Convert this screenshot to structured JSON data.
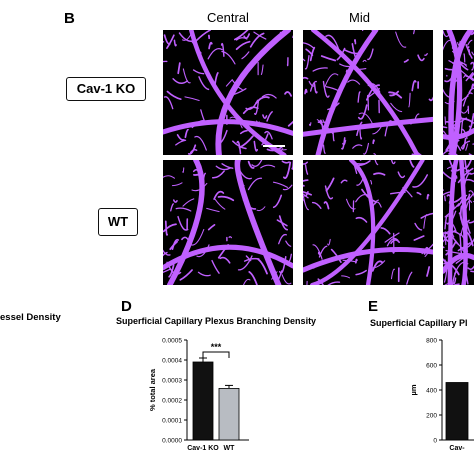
{
  "panel_b": {
    "letter": "B",
    "columns": [
      "Central",
      "Mid"
    ],
    "rows": [
      "Cav-1 KO",
      "WT"
    ]
  },
  "panel_c_partial_title": "essel Density",
  "panel_d": {
    "letter": "D",
    "title": "Superficial Capillary Plexus Branching Density",
    "significance": "***"
  },
  "panel_e": {
    "letter": "E",
    "title": "Superficial Capillary Pl",
    "x_tick_partial": "Cav-"
  },
  "colors": {
    "vessel": "#c060ff",
    "image_bg": "#000000",
    "ko_bar": "#111111",
    "wt_bar": "#b8bcc2"
  },
  "chart_data": [
    {
      "type": "bar",
      "title": "Superficial Capillary Plexus Branching Density",
      "categories": [
        "Cav-1 KO",
        "WT"
      ],
      "values": [
        0.00039,
        0.000258
      ],
      "errors": [
        2e-05,
        1.5e-05
      ],
      "ylabel": "% total area",
      "xlabel": "",
      "ylim": [
        0,
        0.0005
      ],
      "yticks": [
        "0.0000",
        "0.0001",
        "0.0002",
        "0.0003",
        "0.0004",
        "0.0005"
      ],
      "yticks_values": [
        0,
        0.0001,
        0.0002,
        0.0003,
        0.0004,
        0.0005
      ]
    },
    {
      "type": "bar",
      "title": "Superficial Capillary Pl",
      "categories": [
        "Cav-"
      ],
      "values": [
        460
      ],
      "ylabel": "µm",
      "ylim": [
        0,
        800
      ],
      "yticks": [
        "0",
        "200",
        "400",
        "600",
        "800"
      ],
      "yticks_values": [
        0,
        200,
        400,
        600,
        800
      ]
    }
  ]
}
